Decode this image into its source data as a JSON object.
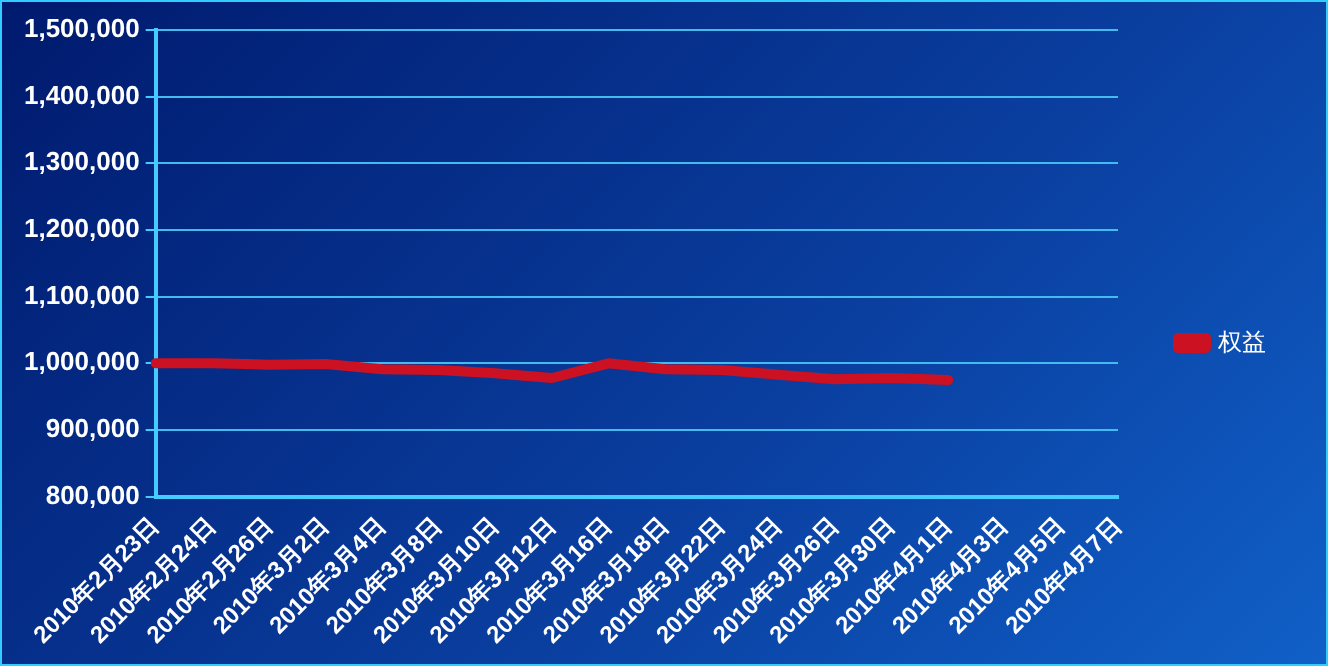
{
  "chart_data": {
    "type": "line",
    "categories": [
      "2010年2月23日",
      "2010年2月24日",
      "2010年2月26日",
      "2010年3月2日",
      "2010年3月4日",
      "2010年3月8日",
      "2010年3月10日",
      "2010年3月12日",
      "2010年3月16日",
      "2010年3月18日",
      "2010年3月22日",
      "2010年3月24日",
      "2010年3月26日",
      "2010年3月30日",
      "2010年4月1日",
      "2010年4月3日",
      "2010年4月5日",
      "2010年4月7日"
    ],
    "series": [
      {
        "name": "权益",
        "color": "#cc1122",
        "values": [
          1000000,
          1000000,
          998000,
          999000,
          991000,
          990000,
          985000,
          978000,
          1000000,
          991000,
          990000,
          983000,
          976000,
          978000,
          975000,
          null,
          null,
          null
        ]
      }
    ],
    "ylim": [
      800000,
      1500000
    ],
    "yticks": [
      {
        "value": 800000,
        "label": "800,000"
      },
      {
        "value": 900000,
        "label": "900,000"
      },
      {
        "value": 1000000,
        "label": "1,000,000"
      },
      {
        "value": 1100000,
        "label": "1,100,000"
      },
      {
        "value": 1200000,
        "label": "1,200,000"
      },
      {
        "value": 1300000,
        "label": "1,300,000"
      },
      {
        "value": 1400000,
        "label": "1,400,000"
      },
      {
        "value": 1500000,
        "label": "1,500,000"
      }
    ],
    "grid": "y",
    "legend": "right",
    "marker": "none",
    "line_style": "solid"
  }
}
